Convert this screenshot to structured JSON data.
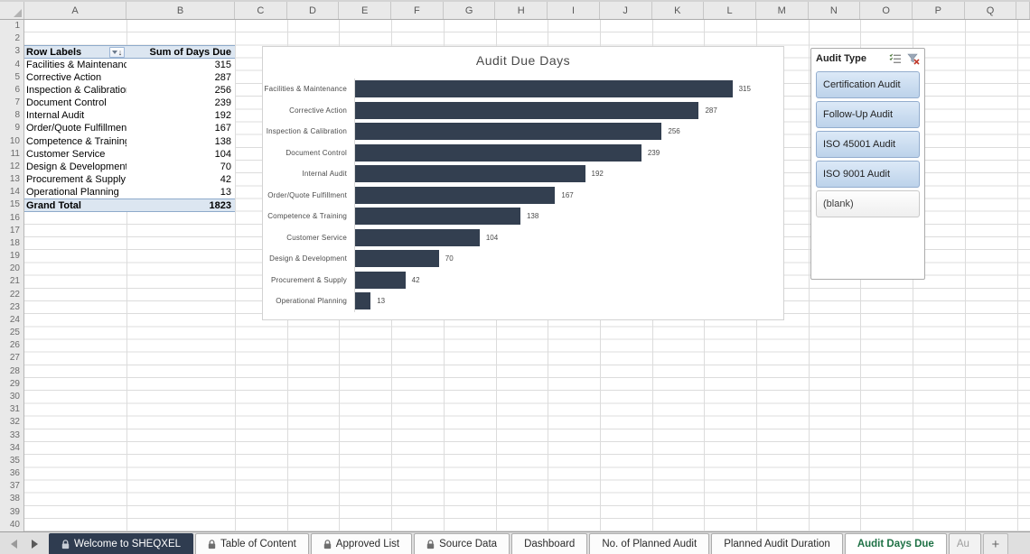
{
  "colors": {
    "bar_fill": "#333F50",
    "pivot_header_bg": "#DCE6F1",
    "pivot_border": "#8EAACB",
    "active_tab_text": "#1E7145",
    "dark_tab_bg": "#2F3C50",
    "slicer_selected": "#BCD2EA",
    "gridline": "#DCDCDC"
  },
  "grid": {
    "columns": [
      "A",
      "B",
      "C",
      "D",
      "E",
      "F",
      "G",
      "H",
      "I",
      "J",
      "K",
      "L",
      "M",
      "N",
      "O",
      "P",
      "Q"
    ],
    "rows": [
      1,
      2,
      3,
      4,
      5,
      6,
      7,
      8,
      9,
      10,
      11,
      12,
      13,
      14,
      15,
      16,
      17,
      18,
      19,
      20,
      21,
      22,
      23,
      24,
      25,
      26,
      27,
      28,
      29,
      30,
      31,
      32,
      33,
      34,
      35,
      36,
      37,
      38,
      39,
      40
    ]
  },
  "pivot": {
    "header": {
      "row_label": "Row Labels",
      "value_label": "Sum of Days Due"
    },
    "rows": [
      {
        "label": "Facilities & Maintenance",
        "value": 315
      },
      {
        "label": "Corrective Action",
        "value": 287
      },
      {
        "label": "Inspection & Calibration",
        "value": 256
      },
      {
        "label": "Document Control",
        "value": 239
      },
      {
        "label": "Internal Audit",
        "value": 192
      },
      {
        "label": "Order/Quote Fulfillment",
        "value": 167
      },
      {
        "label": "Competence & Training",
        "value": 138
      },
      {
        "label": "Customer Service",
        "value": 104
      },
      {
        "label": "Design & Development",
        "value": 70
      },
      {
        "label": "Procurement & Supply",
        "value": 42
      },
      {
        "label": "Operational Planning",
        "value": 13
      }
    ],
    "grand_total": {
      "label": "Grand Total",
      "value": 1823
    }
  },
  "chart_data": {
    "type": "bar",
    "orientation": "horizontal",
    "title": "Audit Due Days",
    "categories": [
      "Facilities & Maintenance",
      "Corrective Action",
      "Inspection & Calibration",
      "Document Control",
      "Internal Audit",
      "Order/Quote Fulfillment",
      "Competence & Training",
      "Customer Service",
      "Design & Development",
      "Procurement & Supply",
      "Operational Planning"
    ],
    "values": [
      315,
      287,
      256,
      239,
      192,
      167,
      138,
      104,
      70,
      42,
      13
    ],
    "data_labels": true,
    "xlabel": "",
    "ylabel": "",
    "xlim": [
      0,
      350
    ],
    "grid": false,
    "legend": false
  },
  "slicer": {
    "title": "Audit Type",
    "items": [
      {
        "label": "Certification Audit",
        "selected": true
      },
      {
        "label": "Follow-Up Audit",
        "selected": true
      },
      {
        "label": "ISO 45001 Audit",
        "selected": true
      },
      {
        "label": "ISO 9001 Audit",
        "selected": true
      },
      {
        "label": "(blank)",
        "selected": false
      }
    ]
  },
  "tabbar": {
    "tabs": [
      {
        "label": "Welcome to SHEQXEL",
        "locked": true,
        "dark": true,
        "active": false
      },
      {
        "label": "Table of Content",
        "locked": true,
        "dark": false,
        "active": false
      },
      {
        "label": "Approved List",
        "locked": true,
        "dark": false,
        "active": false
      },
      {
        "label": "Source Data",
        "locked": true,
        "dark": false,
        "active": false
      },
      {
        "label": "Dashboard",
        "locked": false,
        "dark": false,
        "active": false
      },
      {
        "label": "No. of Planned Audit",
        "locked": false,
        "dark": false,
        "active": false
      },
      {
        "label": "Planned Audit Duration",
        "locked": false,
        "dark": false,
        "active": false
      },
      {
        "label": "Audit Days Due",
        "locked": false,
        "dark": false,
        "active": true
      }
    ],
    "partial_tab_label": "Au",
    "add_sheet_label": "+"
  }
}
